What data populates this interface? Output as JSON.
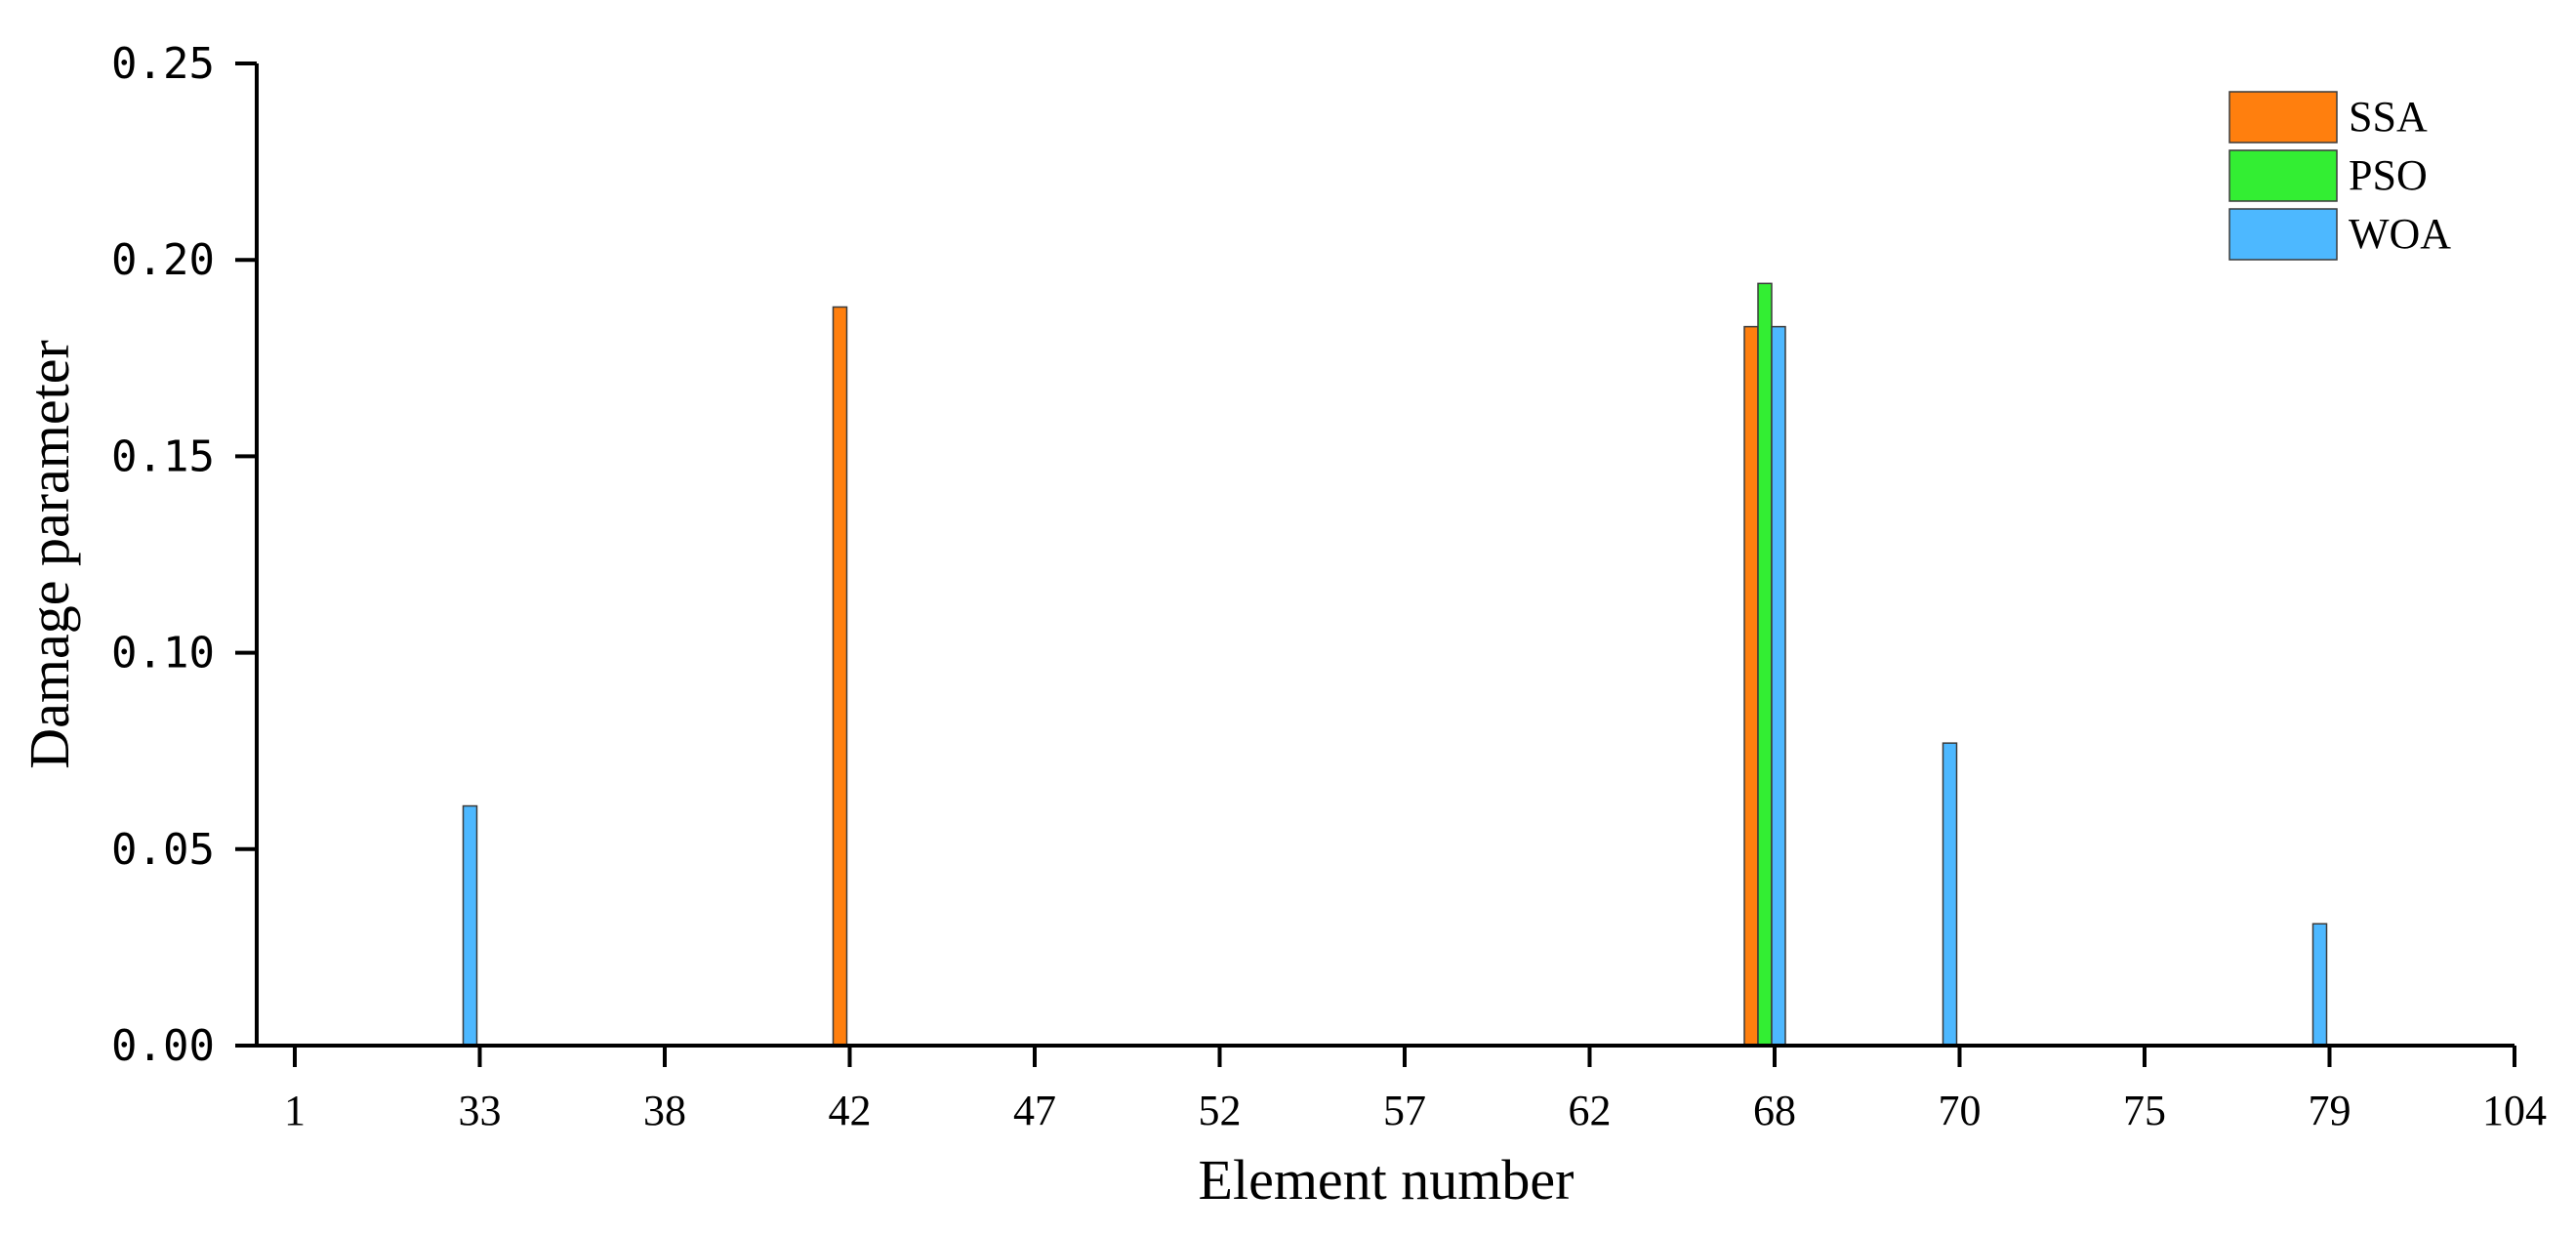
{
  "chart_data": {
    "type": "bar",
    "xlabel": "Element number",
    "ylabel": "Damage parameter",
    "ylim": [
      0,
      0.25
    ],
    "yticks": [
      "0.00",
      "0.05",
      "0.10",
      "0.15",
      "0.20",
      "0.25"
    ],
    "ytick_values": [
      0,
      0.05,
      0.1,
      0.15,
      0.2,
      0.25
    ],
    "xticks": [
      "1",
      "33",
      "38",
      "42",
      "47",
      "52",
      "57",
      "62",
      "68",
      "70",
      "75",
      "79",
      "104"
    ],
    "grid": false,
    "legend_position": "top-right",
    "series": [
      {
        "name": "SSA",
        "color": "#ff7f0e",
        "points": [
          {
            "element": "42",
            "value": 0.188
          },
          {
            "element": "68",
            "value": 0.183
          }
        ]
      },
      {
        "name": "PSO",
        "color": "#33ee33",
        "points": [
          {
            "element": "68",
            "value": 0.194
          }
        ]
      },
      {
        "name": "WOA",
        "color": "#4db8ff",
        "points": [
          {
            "element": "33",
            "value": 0.061
          },
          {
            "element": "68",
            "value": 0.183
          },
          {
            "element": "70",
            "value": 0.077
          },
          {
            "element": "79",
            "value": 0.031
          }
        ]
      }
    ]
  }
}
